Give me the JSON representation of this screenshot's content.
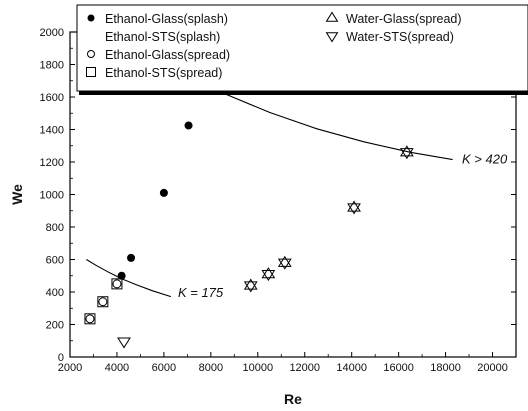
{
  "chart_data": {
    "type": "scatter",
    "xlabel": "Re",
    "ylabel": "We",
    "xlim": [
      2000,
      21000
    ],
    "ylim": [
      0,
      2000
    ],
    "xticks": [
      2000,
      4000,
      6000,
      8000,
      10000,
      12000,
      14000,
      16000,
      18000,
      20000
    ],
    "yticks": [
      0,
      200,
      400,
      600,
      800,
      1000,
      1200,
      1400,
      1600,
      1800,
      2000
    ],
    "legend_position": "top",
    "series": [
      {
        "name": "Ethanol-Glass(splash)",
        "marker": "filled-circle",
        "points": [
          [
            4200,
            500
          ],
          [
            4600,
            610
          ],
          [
            6000,
            1010
          ],
          [
            7050,
            1425
          ]
        ]
      },
      {
        "name": "Ethanol-STS(splash)",
        "marker": "none",
        "points": []
      },
      {
        "name": "Ethanol-Glass(spread)",
        "marker": "open-circle",
        "points": [
          [
            2850,
            235
          ],
          [
            3400,
            340
          ],
          [
            4000,
            450
          ]
        ]
      },
      {
        "name": "Ethanol-STS(spread)",
        "marker": "open-square",
        "points": [
          [
            2850,
            235
          ],
          [
            3400,
            340
          ],
          [
            4000,
            450
          ]
        ]
      },
      {
        "name": "Water-Glass(spread)",
        "marker": "up-triangle",
        "points": [
          [
            9700,
            440
          ],
          [
            10450,
            510
          ],
          [
            11150,
            580
          ],
          [
            14100,
            920
          ],
          [
            16350,
            1260
          ]
        ]
      },
      {
        "name": "Water-STS(spread)",
        "marker": "down-triangle",
        "points": [
          [
            4300,
            95
          ],
          [
            9700,
            440
          ],
          [
            10450,
            510
          ],
          [
            11150,
            580
          ],
          [
            14100,
            920
          ],
          [
            16350,
            1260
          ]
        ]
      }
    ],
    "curves": [
      {
        "label": "K = 175",
        "points": [
          [
            2700,
            600
          ],
          [
            3100,
            565
          ],
          [
            3600,
            525
          ],
          [
            4200,
            482
          ],
          [
            4800,
            446
          ],
          [
            5500,
            408
          ],
          [
            6300,
            372
          ]
        ]
      },
      {
        "label": "K > 420",
        "points": [
          [
            5500,
            1850
          ],
          [
            6800,
            1745
          ],
          [
            8500,
            1625
          ],
          [
            10500,
            1505
          ],
          [
            12500,
            1405
          ],
          [
            14500,
            1325
          ],
          [
            16500,
            1260
          ],
          [
            18300,
            1215
          ]
        ]
      }
    ],
    "annotations": [
      {
        "text": "K = 175",
        "x": 6600,
        "y": 395
      },
      {
        "text": "K > 420",
        "x": 18700,
        "y": 1215
      }
    ]
  }
}
